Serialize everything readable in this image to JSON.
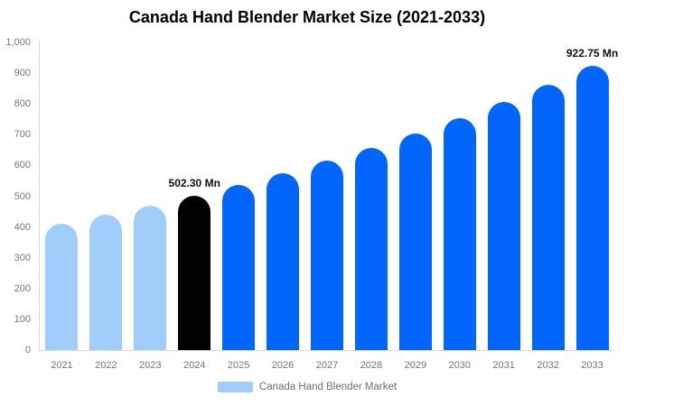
{
  "chart_data": {
    "type": "bar",
    "title": "Canada Hand Blender Market Size (2021-2033)",
    "xlabel": "",
    "ylabel": "",
    "ylim": [
      0,
      1000
    ],
    "ytick_labels": [
      "0",
      "100",
      "200",
      "300",
      "400",
      "500",
      "600",
      "700",
      "800",
      "900",
      "1,000"
    ],
    "grid": false,
    "legend_position": "bottom",
    "unit": "Mn",
    "points": [
      {
        "year": "2021",
        "value": 410,
        "color": "light_blue"
      },
      {
        "year": "2022",
        "value": 439,
        "color": "light_blue"
      },
      {
        "year": "2023",
        "value": 469,
        "color": "light_blue"
      },
      {
        "year": "2024",
        "value": 502.3,
        "color": "black"
      },
      {
        "year": "2025",
        "value": 537,
        "color": "blue"
      },
      {
        "year": "2026",
        "value": 575,
        "color": "blue"
      },
      {
        "year": "2027",
        "value": 615,
        "color": "blue"
      },
      {
        "year": "2028",
        "value": 658,
        "color": "blue"
      },
      {
        "year": "2029",
        "value": 704,
        "color": "blue"
      },
      {
        "year": "2030",
        "value": 753,
        "color": "blue"
      },
      {
        "year": "2031",
        "value": 806,
        "color": "blue"
      },
      {
        "year": "2032",
        "value": 863,
        "color": "blue"
      },
      {
        "year": "2033",
        "value": 922.75,
        "color": "blue"
      }
    ],
    "annotations": [
      {
        "year": "2024",
        "text": "502.30 Mn"
      },
      {
        "year": "2033",
        "text": "922.75 Mn"
      }
    ]
  },
  "colors": {
    "light_blue": "#a1cdfb",
    "blue": "#0266fd",
    "black": "#000000",
    "axis": "#d9d9d9",
    "tick_text": "#757575",
    "annotation_text": "#111111",
    "legend_text": "#6e6e6e"
  },
  "legend": {
    "label": "Canada Hand Blender Market",
    "swatch_color": "#a1cdfb"
  }
}
